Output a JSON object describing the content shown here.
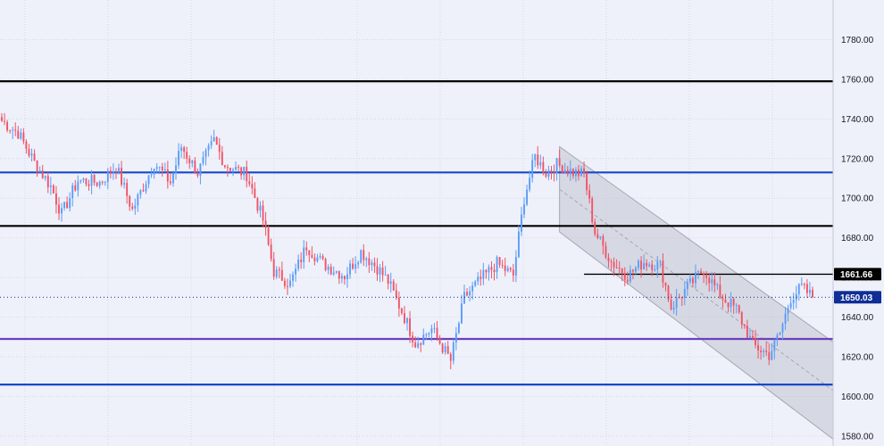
{
  "colors": {
    "background": "#eef1fa",
    "grid": "#d5d9e6",
    "axis_line": "#c4c8d4",
    "bull": "#5b9cf6",
    "bear": "#f05365",
    "level_black": "#000000",
    "level_blue": "#1a47c8",
    "level_purple": "#6e3fbf",
    "channel_fill": "#b9bcc7",
    "channel_line": "#a5a8b4",
    "tag_black": "#000000",
    "tag_blue": "#0f2f96",
    "price_line": "#0f2f96"
  },
  "chart_data": {
    "type": "candlestick",
    "title": "",
    "xlabel": "",
    "ylabel": "",
    "ylim": [
      1575,
      1800
    ],
    "y_ticks": [
      1580,
      1600,
      1620,
      1640,
      1660,
      1680,
      1700,
      1720,
      1740,
      1760,
      1780
    ],
    "y_tick_labels": [
      "1580.00",
      "1600.00",
      "1620.00",
      "1640.00",
      "1660.00",
      "1680.00",
      "1700.00",
      "1720.00",
      "1740.00",
      "1760.00",
      "1780.00"
    ],
    "grid": true,
    "horizontal_levels": [
      {
        "value": 1759,
        "color": "level_black",
        "from_bar": 0
      },
      {
        "value": 1713,
        "color": "level_blue",
        "from_bar": 0
      },
      {
        "value": 1686,
        "color": "level_black",
        "from_bar": 0
      },
      {
        "value": 1629,
        "color": "level_purple",
        "from_bar": 0
      },
      {
        "value": 1606,
        "color": "level_blue",
        "from_bar": 0
      },
      {
        "value": 1661.66,
        "color": "level_black",
        "from_bar": 214
      }
    ],
    "channel": {
      "start_bar": 205,
      "end_bar": 306,
      "upper_start": 1726,
      "upper_end": 1627,
      "lower_start": 1683,
      "lower_end": 1578
    },
    "price_tags": [
      {
        "label": "1661.66",
        "value": 1661.66,
        "color": "tag_black"
      },
      {
        "label": "1650.03",
        "value": 1650.03,
        "color": "tag_blue"
      }
    ],
    "last_price": 1650.03,
    "waypoints": [
      [
        0,
        1739
      ],
      [
        6,
        1733
      ],
      [
        12,
        1718
      ],
      [
        18,
        1706
      ],
      [
        22,
        1692
      ],
      [
        28,
        1709
      ],
      [
        36,
        1708
      ],
      [
        42,
        1716
      ],
      [
        48,
        1694
      ],
      [
        56,
        1718
      ],
      [
        62,
        1708
      ],
      [
        66,
        1726
      ],
      [
        72,
        1713
      ],
      [
        78,
        1729
      ],
      [
        82,
        1717
      ],
      [
        90,
        1712
      ],
      [
        96,
        1689
      ],
      [
        100,
        1663
      ],
      [
        106,
        1657
      ],
      [
        112,
        1676
      ],
      [
        118,
        1667
      ],
      [
        126,
        1661
      ],
      [
        132,
        1673
      ],
      [
        138,
        1665
      ],
      [
        142,
        1658
      ],
      [
        148,
        1640
      ],
      [
        152,
        1627
      ],
      [
        158,
        1634
      ],
      [
        165,
        1618
      ],
      [
        170,
        1650
      ],
      [
        176,
        1659
      ],
      [
        182,
        1667
      ],
      [
        188,
        1661
      ],
      [
        192,
        1700
      ],
      [
        196,
        1721
      ],
      [
        200,
        1713
      ],
      [
        204,
        1717
      ],
      [
        210,
        1713
      ],
      [
        214,
        1712
      ],
      [
        218,
        1683
      ],
      [
        224,
        1668
      ],
      [
        230,
        1661
      ],
      [
        236,
        1668
      ],
      [
        242,
        1666
      ],
      [
        246,
        1645
      ],
      [
        252,
        1655
      ],
      [
        258,
        1664
      ],
      [
        264,
        1651
      ],
      [
        270,
        1644
      ],
      [
        276,
        1626
      ],
      [
        282,
        1621
      ],
      [
        286,
        1632
      ],
      [
        290,
        1650
      ],
      [
        294,
        1655
      ],
      [
        298,
        1650
      ]
    ],
    "bar_count": 299,
    "seed": 7
  }
}
